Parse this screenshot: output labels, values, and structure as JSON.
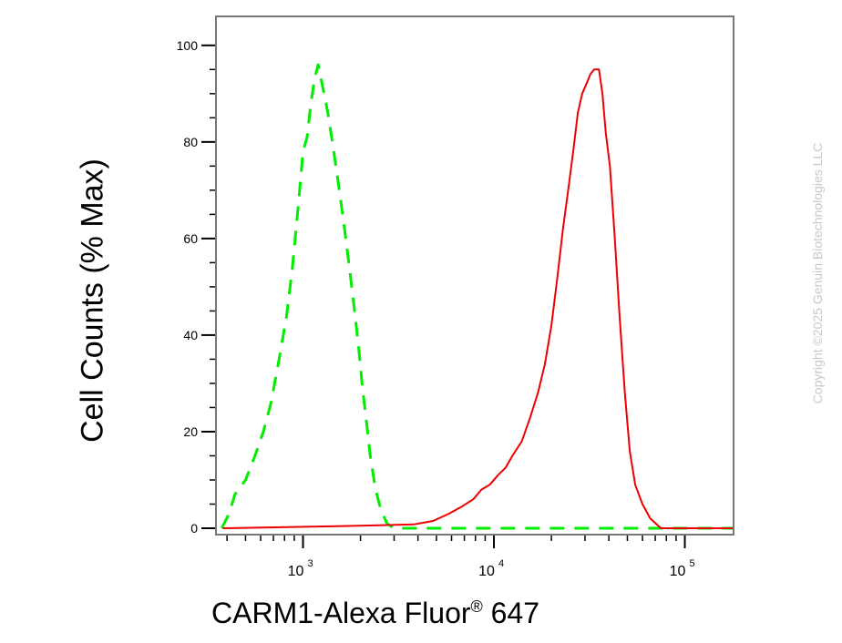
{
  "chart_data": {
    "type": "area",
    "xlabel_main": "CARM1-Alexa Fluor",
    "xlabel_sup": "®",
    "xlabel_tail": " 647",
    "ylabel": "Cell Counts (% Max)",
    "x_scale": "log",
    "xlim": [
      350,
      180000
    ],
    "ylim": [
      0,
      106
    ],
    "y_ticks": [
      0,
      20,
      40,
      60,
      80,
      100
    ],
    "x_ticks": [
      {
        "value": 1000,
        "base": "10",
        "exp": "3"
      },
      {
        "value": 10000,
        "base": "10",
        "exp": "4"
      },
      {
        "value": 100000,
        "base": "10",
        "exp": "5"
      }
    ],
    "grid": false,
    "series": [
      {
        "color": "#00ee00",
        "style": "dashed",
        "points": [
          [
            375,
            0
          ],
          [
            410,
            3
          ],
          [
            440,
            7
          ],
          [
            500,
            10
          ],
          [
            560,
            15
          ],
          [
            620,
            20
          ],
          [
            680,
            26
          ],
          [
            750,
            35
          ],
          [
            820,
            44
          ],
          [
            880,
            54
          ],
          [
            950,
            68
          ],
          [
            1000,
            78
          ],
          [
            1050,
            81
          ],
          [
            1100,
            88
          ],
          [
            1150,
            93
          ],
          [
            1200,
            96
          ],
          [
            1260,
            92
          ],
          [
            1350,
            86
          ],
          [
            1450,
            78
          ],
          [
            1550,
            70
          ],
          [
            1650,
            62
          ],
          [
            1750,
            54
          ],
          [
            1850,
            46
          ],
          [
            1950,
            38
          ],
          [
            2050,
            29
          ],
          [
            2150,
            22
          ],
          [
            2250,
            15
          ],
          [
            2400,
            8
          ],
          [
            2550,
            4
          ],
          [
            2750,
            1
          ],
          [
            3000,
            0
          ],
          [
            3600,
            0
          ],
          [
            180000,
            0
          ]
        ]
      },
      {
        "color": "#ee0000",
        "style": "solid",
        "points": [
          [
            380,
            0
          ],
          [
            1400,
            0.4
          ],
          [
            2500,
            0.6
          ],
          [
            3800,
            0.8
          ],
          [
            4800,
            1.5
          ],
          [
            5800,
            3
          ],
          [
            6800,
            4.5
          ],
          [
            7800,
            6
          ],
          [
            8600,
            8
          ],
          [
            9500,
            9
          ],
          [
            10500,
            11
          ],
          [
            11500,
            12.5
          ],
          [
            12500,
            15
          ],
          [
            14000,
            18
          ],
          [
            15500,
            23
          ],
          [
            17000,
            28
          ],
          [
            18500,
            34
          ],
          [
            20000,
            42
          ],
          [
            21500,
            52
          ],
          [
            23000,
            62
          ],
          [
            24500,
            70
          ],
          [
            26000,
            78
          ],
          [
            27500,
            86
          ],
          [
            29000,
            90
          ],
          [
            30500,
            92
          ],
          [
            32000,
            94
          ],
          [
            33500,
            95
          ],
          [
            35500,
            95
          ],
          [
            37000,
            90
          ],
          [
            38500,
            82
          ],
          [
            40500,
            75
          ],
          [
            43000,
            60
          ],
          [
            45500,
            44
          ],
          [
            48500,
            28
          ],
          [
            51500,
            16
          ],
          [
            55000,
            9
          ],
          [
            60000,
            5
          ],
          [
            66000,
            2
          ],
          [
            75000,
            0
          ],
          [
            180000,
            0
          ]
        ]
      }
    ]
  },
  "copyright": "Copyright ©2025 Genuin Biotechnologies LLC"
}
